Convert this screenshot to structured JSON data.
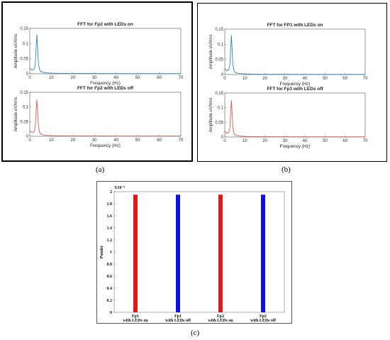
{
  "captions": {
    "a": "(a)",
    "b": "(b)",
    "c": "(c)"
  },
  "colors": {
    "on": "#2e86c1",
    "off": "#e05555",
    "bar_red": "#dd1a1a",
    "bar_blue": "#1010e0"
  },
  "chart_data": [
    {
      "panel": "a",
      "type": "line",
      "title": "FFT for Fp2 with LEDs on",
      "xlabel": "Frequency (Hz)",
      "ylabel": "Amplitude uV/rms",
      "xlim": [
        0,
        70
      ],
      "ylim": [
        0,
        0.15
      ],
      "xticks": [
        0,
        10,
        20,
        30,
        40,
        50,
        60,
        70
      ],
      "yticks": [
        0,
        0.05,
        0.1,
        0.15
      ],
      "color": "#2e86c1",
      "x": [
        0,
        1,
        2,
        2.5,
        3,
        3.3,
        3.6,
        4,
        4.5,
        5,
        6,
        8,
        10,
        15,
        20,
        30,
        40,
        50,
        60,
        70
      ],
      "values": [
        0.02,
        0.012,
        0.016,
        0.03,
        0.09,
        0.13,
        0.09,
        0.035,
        0.015,
        0.008,
        0.005,
        0.003,
        0.002,
        0.0015,
        0.001,
        0.001,
        0.0008,
        0.0008,
        0.0007,
        0.0007
      ]
    },
    {
      "panel": "a",
      "type": "line",
      "title": "FFT for Fp2 with LEDs off",
      "xlabel": "Frequency (Hz)",
      "ylabel": "Amplitude uV/rms",
      "xlim": [
        0,
        70
      ],
      "ylim": [
        0,
        0.15
      ],
      "xticks": [
        0,
        10,
        20,
        30,
        40,
        50,
        60,
        70
      ],
      "yticks": [
        0,
        0.05,
        0.1,
        0.15
      ],
      "color": "#e05555",
      "x": [
        0,
        1,
        2,
        2.5,
        3,
        3.3,
        3.6,
        4,
        4.5,
        5,
        6,
        8,
        10,
        15,
        20,
        30,
        40,
        50,
        60,
        70
      ],
      "values": [
        0.02,
        0.012,
        0.016,
        0.03,
        0.09,
        0.125,
        0.09,
        0.035,
        0.015,
        0.008,
        0.005,
        0.003,
        0.002,
        0.0015,
        0.001,
        0.001,
        0.0008,
        0.0008,
        0.0007,
        0.0007
      ]
    },
    {
      "panel": "b",
      "type": "line",
      "title": "FFT for FP1 with LEDs on",
      "xlabel": "Frequency (Hz)",
      "ylabel": "Amplitude uV/rms",
      "xlim": [
        0,
        70
      ],
      "ylim": [
        0,
        0.15
      ],
      "xticks": [
        0,
        10,
        20,
        30,
        40,
        50,
        60,
        70
      ],
      "yticks": [
        0,
        0.05,
        0.1,
        0.15
      ],
      "color": "#2e86c1",
      "x": [
        0,
        1,
        2,
        2.5,
        3,
        3.3,
        3.6,
        4,
        4.5,
        5,
        6,
        8,
        10,
        15,
        20,
        30,
        40,
        50,
        60,
        70
      ],
      "values": [
        0.02,
        0.012,
        0.016,
        0.03,
        0.09,
        0.13,
        0.09,
        0.035,
        0.015,
        0.008,
        0.005,
        0.003,
        0.002,
        0.0015,
        0.001,
        0.001,
        0.0008,
        0.0008,
        0.0007,
        0.0007
      ]
    },
    {
      "panel": "b",
      "type": "line",
      "title": "FFT for Fp1 with LEDs off",
      "xlabel": "Frequency (Hz)",
      "ylabel": "Amplitude uV/rms",
      "xlim": [
        0,
        70
      ],
      "ylim": [
        0,
        0.15
      ],
      "xticks": [
        0,
        10,
        20,
        30,
        40,
        50,
        60,
        70
      ],
      "yticks": [
        0,
        0.05,
        0.1,
        0.15
      ],
      "color": "#e05555",
      "x": [
        0,
        1,
        2,
        2.5,
        3,
        3.3,
        3.6,
        4,
        4.5,
        5,
        6,
        8,
        10,
        15,
        20,
        30,
        40,
        50,
        60,
        70
      ],
      "values": [
        0.02,
        0.012,
        0.016,
        0.03,
        0.09,
        0.125,
        0.09,
        0.035,
        0.015,
        0.008,
        0.005,
        0.003,
        0.002,
        0.0015,
        0.001,
        0.001,
        0.0008,
        0.0008,
        0.0007,
        0.0007
      ]
    },
    {
      "panel": "c",
      "type": "bar",
      "ylabel": "Ponder",
      "exponent_label": "X10⁻³",
      "ylim": [
        0,
        2
      ],
      "yticks": [
        0,
        0.2,
        0.4,
        0.6,
        0.8,
        1,
        1.2,
        1.4,
        1.6,
        1.8,
        2
      ],
      "categories": [
        {
          "line1": "Fp1",
          "line2": "with LEDs on"
        },
        {
          "line1": "Fp1",
          "line2": "with LEDs off"
        },
        {
          "line1": "Fp2",
          "line2": "with LEDs on"
        },
        {
          "line1": "Fp2",
          "line2": "with LEDs off"
        }
      ],
      "values": [
        1.95,
        1.95,
        1.95,
        1.95
      ],
      "bar_colors": [
        "#dd1a1a",
        "#1010e0",
        "#dd1a1a",
        "#1010e0"
      ]
    }
  ]
}
